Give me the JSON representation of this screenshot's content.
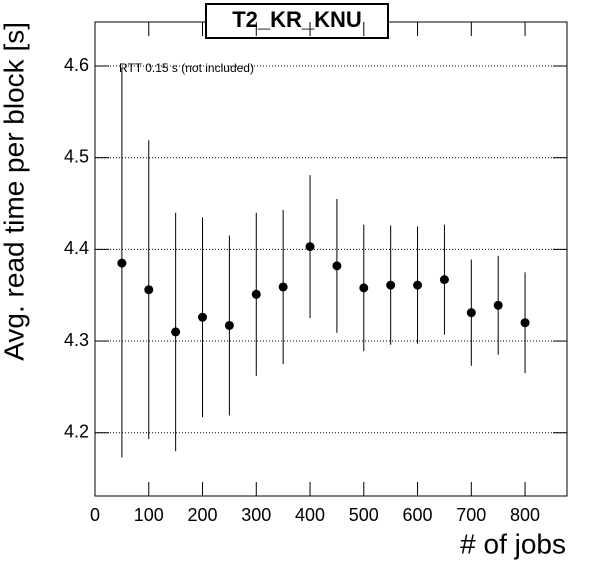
{
  "chart_data": {
    "type": "scatter",
    "title": "T2_KR_KNU",
    "annotation": "RTT 0.15 s (not included)",
    "xlabel": "# of jobs",
    "ylabel": "Avg. read time per block [s]",
    "x": [
      50,
      100,
      150,
      200,
      250,
      300,
      350,
      400,
      450,
      500,
      550,
      600,
      650,
      700,
      750,
      800
    ],
    "values": [
      4.385,
      4.356,
      4.31,
      4.326,
      4.317,
      4.351,
      4.359,
      4.403,
      4.382,
      4.358,
      4.361,
      4.361,
      4.367,
      4.331,
      4.339,
      4.32
    ],
    "errors": [
      0.212,
      0.163,
      0.13,
      0.109,
      0.098,
      0.089,
      0.084,
      0.078,
      0.073,
      0.069,
      0.065,
      0.064,
      0.06,
      0.058,
      0.054,
      0.055
    ],
    "color": "#000000",
    "xlim": [
      0,
      878
    ],
    "ylim": [
      4.131,
      4.648
    ],
    "xticks": [
      0,
      100,
      200,
      300,
      400,
      500,
      600,
      700,
      800
    ],
    "yticks": [
      4.2,
      4.3,
      4.4,
      4.5,
      4.6
    ],
    "grid": true
  }
}
